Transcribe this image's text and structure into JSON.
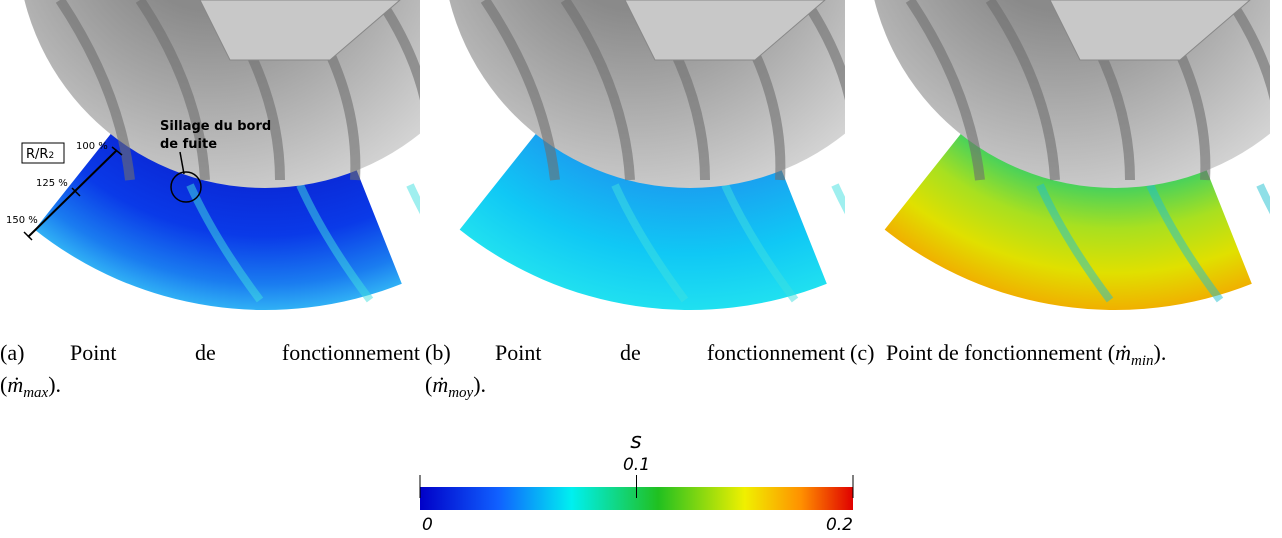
{
  "figure": {
    "panels": [
      {
        "caption": {
          "label": "(a)",
          "text": [
            "Point",
            "de",
            "fonctionnement"
          ],
          "open": "(",
          "symbol": "ṁ",
          "subscript": "max",
          "close": ")."
        }
      },
      {
        "caption": {
          "label": "(b)",
          "text": [
            "Point",
            "de",
            "fonctionnement"
          ],
          "open": "(",
          "symbol": "ṁ",
          "subscript": "moy",
          "close": ")."
        }
      },
      {
        "caption": {
          "label": "(c)",
          "text": [
            "Point de fonctionnement"
          ],
          "open": "(",
          "symbol": "ṁ",
          "subscript": "min",
          "close": ")."
        }
      }
    ],
    "annotations": {
      "axis": {
        "text": "R/R",
        "subscript": "2"
      },
      "radii": [
        "100 %",
        "125 %",
        "150 %"
      ],
      "wake": [
        "Sillage du bord",
        "de fuite"
      ]
    },
    "colorbar": {
      "label": "s",
      "ticks": [
        0,
        0.1,
        0.2
      ]
    }
  }
}
